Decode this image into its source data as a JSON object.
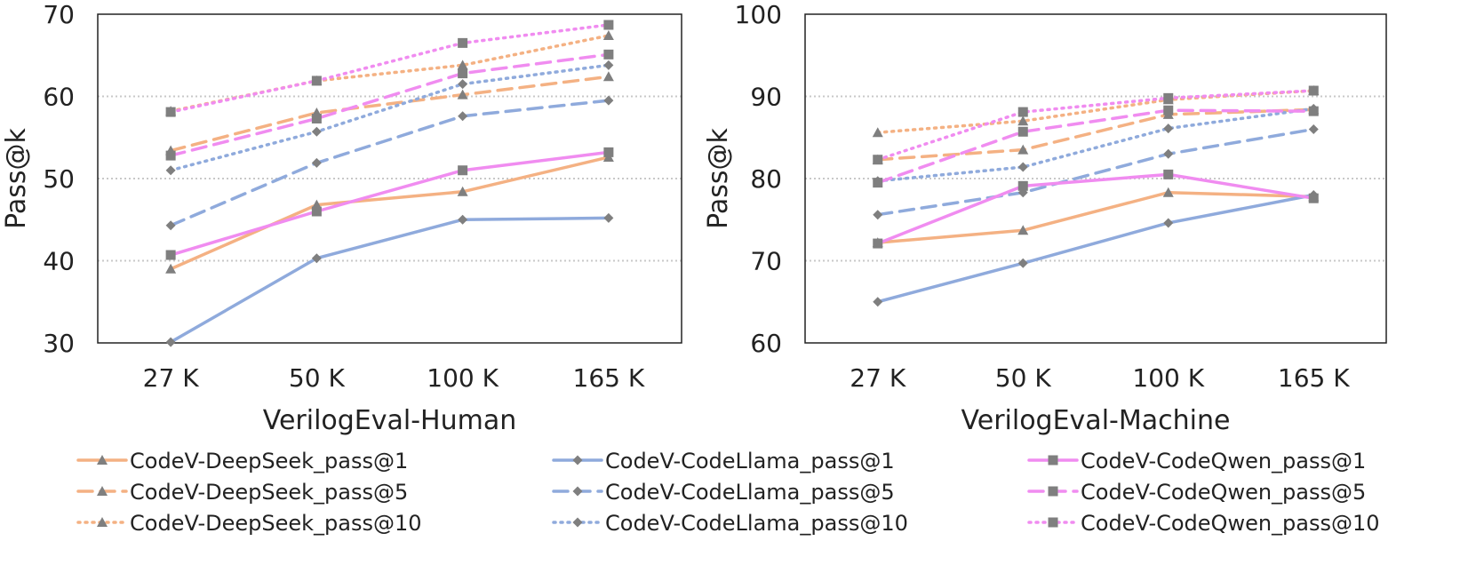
{
  "chart_data": [
    {
      "type": "line",
      "title": "",
      "xlabel": "VerilogEval-Human",
      "ylabel": "Pass@k",
      "categories": [
        "27 K",
        "50 K",
        "100 K",
        "165 K"
      ],
      "ylim": [
        30,
        70
      ],
      "yticks": [
        30,
        40,
        50,
        60,
        70
      ],
      "grid": true,
      "series": [
        {
          "name": "CodeV-DeepSeek_pass@1",
          "values": [
            39.0,
            46.8,
            48.4,
            52.6
          ],
          "color": "#F4B183",
          "dash": "solid",
          "marker": "triangle"
        },
        {
          "name": "CodeV-DeepSeek_pass@5",
          "values": [
            53.4,
            58.0,
            60.2,
            62.4
          ],
          "color": "#F4B183",
          "dash": "dashed",
          "marker": "triangle"
        },
        {
          "name": "CodeV-DeepSeek_pass@10",
          "values": [
            58.2,
            61.9,
            63.8,
            67.4
          ],
          "color": "#F4B183",
          "dash": "dotted",
          "marker": "triangle"
        },
        {
          "name": "CodeV-CodeLlama_pass@1",
          "values": [
            30.1,
            40.3,
            45.0,
            45.2
          ],
          "color": "#8FAADC",
          "dash": "solid",
          "marker": "diamond"
        },
        {
          "name": "CodeV-CodeLlama_pass@5",
          "values": [
            44.3,
            51.9,
            57.6,
            59.5
          ],
          "color": "#8FAADC",
          "dash": "dashed",
          "marker": "diamond"
        },
        {
          "name": "CodeV-CodeLlama_pass@10",
          "values": [
            51.0,
            55.7,
            61.5,
            63.8
          ],
          "color": "#8FAADC",
          "dash": "dotted",
          "marker": "diamond"
        },
        {
          "name": "CodeV-CodeQwen_pass@1",
          "values": [
            40.7,
            46.0,
            51.0,
            53.2
          ],
          "color": "#F08CF0",
          "dash": "solid",
          "marker": "square"
        },
        {
          "name": "CodeV-CodeQwen_pass@5",
          "values": [
            52.8,
            57.3,
            62.8,
            65.1
          ],
          "color": "#F08CF0",
          "dash": "dashed",
          "marker": "square"
        },
        {
          "name": "CodeV-CodeQwen_pass@10",
          "values": [
            58.1,
            61.9,
            66.5,
            68.7
          ],
          "color": "#F08CF0",
          "dash": "dotted",
          "marker": "square"
        }
      ]
    },
    {
      "type": "line",
      "title": "",
      "xlabel": "VerilogEval-Machine",
      "ylabel": "Pass@k",
      "categories": [
        "27 K",
        "50 K",
        "100 K",
        "165 K"
      ],
      "ylim": [
        60,
        100
      ],
      "yticks": [
        60,
        70,
        80,
        90,
        100
      ],
      "grid": true,
      "series": [
        {
          "name": "CodeV-DeepSeek_pass@1",
          "values": [
            72.2,
            73.7,
            78.3,
            77.8
          ],
          "color": "#F4B183",
          "dash": "solid",
          "marker": "triangle"
        },
        {
          "name": "CodeV-DeepSeek_pass@5",
          "values": [
            82.3,
            83.5,
            87.8,
            88.4
          ],
          "color": "#F4B183",
          "dash": "dashed",
          "marker": "triangle"
        },
        {
          "name": "CodeV-DeepSeek_pass@10",
          "values": [
            85.6,
            87.0,
            89.6,
            90.7
          ],
          "color": "#F4B183",
          "dash": "dotted",
          "marker": "triangle"
        },
        {
          "name": "CodeV-CodeLlama_pass@1",
          "values": [
            65.0,
            69.7,
            74.6,
            78.0
          ],
          "color": "#8FAADC",
          "dash": "solid",
          "marker": "diamond"
        },
        {
          "name": "CodeV-CodeLlama_pass@5",
          "values": [
            75.6,
            78.3,
            83.0,
            86.0
          ],
          "color": "#8FAADC",
          "dash": "dashed",
          "marker": "diamond"
        },
        {
          "name": "CodeV-CodeLlama_pass@10",
          "values": [
            79.7,
            81.4,
            86.1,
            88.5
          ],
          "color": "#8FAADC",
          "dash": "dotted",
          "marker": "diamond"
        },
        {
          "name": "CodeV-CodeQwen_pass@1",
          "values": [
            72.1,
            79.1,
            80.5,
            77.6
          ],
          "color": "#F08CF0",
          "dash": "solid",
          "marker": "square"
        },
        {
          "name": "CodeV-CodeQwen_pass@5",
          "values": [
            79.5,
            85.7,
            88.3,
            88.2
          ],
          "color": "#F08CF0",
          "dash": "dashed",
          "marker": "square"
        },
        {
          "name": "CodeV-CodeQwen_pass@10",
          "values": [
            82.3,
            88.1,
            89.8,
            90.7
          ],
          "color": "#F08CF0",
          "dash": "dotted",
          "marker": "square"
        }
      ]
    }
  ],
  "legend": {
    "placement": "bottom",
    "items": [
      {
        "label": "CodeV-DeepSeek_pass@1",
        "color": "#F4B183",
        "dash": "solid",
        "marker": "triangle"
      },
      {
        "label": "CodeV-DeepSeek_pass@5",
        "color": "#F4B183",
        "dash": "dashed",
        "marker": "triangle"
      },
      {
        "label": "CodeV-DeepSeek_pass@10",
        "color": "#F4B183",
        "dash": "dotted",
        "marker": "triangle"
      },
      {
        "label": "CodeV-CodeLlama_pass@1",
        "color": "#8FAADC",
        "dash": "solid",
        "marker": "diamond"
      },
      {
        "label": "CodeV-CodeLlama_pass@5",
        "color": "#8FAADC",
        "dash": "dashed",
        "marker": "diamond"
      },
      {
        "label": "CodeV-CodeLlama_pass@10",
        "color": "#8FAADC",
        "dash": "dotted",
        "marker": "diamond"
      },
      {
        "label": "CodeV-CodeQwen_pass@1",
        "color": "#F08CF0",
        "dash": "solid",
        "marker": "square"
      },
      {
        "label": "CodeV-CodeQwen_pass@5",
        "color": "#F08CF0",
        "dash": "dashed",
        "marker": "square"
      },
      {
        "label": "CodeV-CodeQwen_pass@10",
        "color": "#F08CF0",
        "dash": "dotted",
        "marker": "square"
      }
    ]
  }
}
